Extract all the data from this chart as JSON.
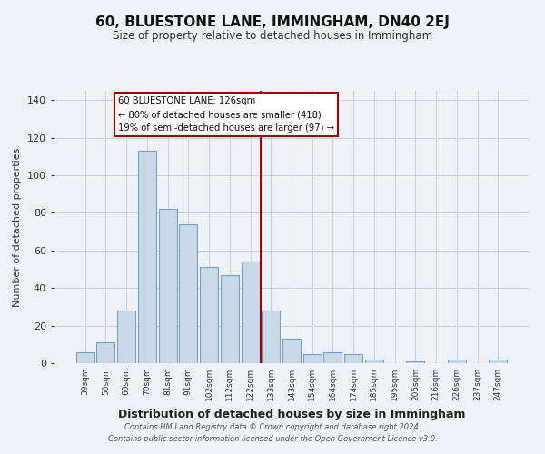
{
  "title": "60, BLUESTONE LANE, IMMINGHAM, DN40 2EJ",
  "subtitle": "Size of property relative to detached houses in Immingham",
  "xlabel": "Distribution of detached houses by size in Immingham",
  "ylabel": "Number of detached properties",
  "categories": [
    "39sqm",
    "50sqm",
    "60sqm",
    "70sqm",
    "81sqm",
    "91sqm",
    "102sqm",
    "112sqm",
    "122sqm",
    "133sqm",
    "143sqm",
    "154sqm",
    "164sqm",
    "174sqm",
    "185sqm",
    "195sqm",
    "205sqm",
    "216sqm",
    "226sqm",
    "237sqm",
    "247sqm"
  ],
  "values": [
    6,
    11,
    28,
    113,
    82,
    74,
    51,
    47,
    54,
    28,
    13,
    5,
    6,
    5,
    2,
    0,
    1,
    0,
    2,
    0,
    2
  ],
  "bar_color": "#c8d8e8",
  "bar_edge_color": "#7aa0c0",
  "vline_color": "#990000",
  "annotation_title": "60 BLUESTONE LANE: 126sqm",
  "annotation_line1": "← 80% of detached houses are smaller (418)",
  "annotation_line2": "19% of semi-detached houses are larger (97) →",
  "annotation_box_color": "#ffffff",
  "annotation_box_edge": "#990000",
  "ylim": [
    0,
    145
  ],
  "yticks": [
    0,
    20,
    40,
    60,
    80,
    100,
    120,
    140
  ],
  "footer1": "Contains HM Land Registry data © Crown copyright and database right 2024.",
  "footer2": "Contains public sector information licensed under the Open Government Licence v3.0.",
  "bg_color": "#eef2f7",
  "plot_bg_color": "#eef2f7",
  "grid_color": "#c8d0dc"
}
